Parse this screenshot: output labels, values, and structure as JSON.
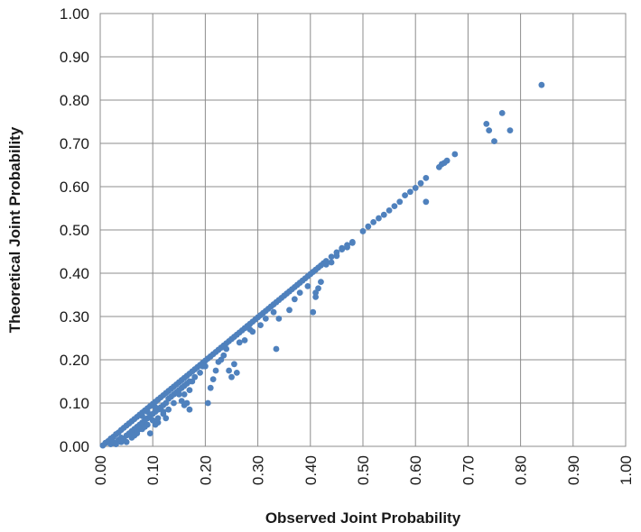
{
  "chart_data": {
    "type": "scatter",
    "title": "",
    "xlabel": "Observed Joint Probability",
    "ylabel": "Theoretical Joint Probability",
    "xlim": [
      0,
      1
    ],
    "ylim": [
      0,
      1
    ],
    "x_ticks": [
      "0.00",
      "0.10",
      "0.20",
      "0.30",
      "0.40",
      "0.50",
      "0.60",
      "0.70",
      "0.80",
      "0.90",
      "1.00"
    ],
    "y_ticks": [
      "0.00",
      "0.10",
      "0.20",
      "0.30",
      "0.40",
      "0.50",
      "0.60",
      "0.70",
      "0.80",
      "0.90",
      "1.00"
    ],
    "grid": true,
    "legend": "none",
    "marker_color": "#4F81BD",
    "series": [
      {
        "points": [
          [
            0.005,
            0.002
          ],
          [
            0.01,
            0.008
          ],
          [
            0.015,
            0.012
          ],
          [
            0.02,
            0.018
          ],
          [
            0.025,
            0.022
          ],
          [
            0.03,
            0.028
          ],
          [
            0.035,
            0.032
          ],
          [
            0.04,
            0.038
          ],
          [
            0.045,
            0.043
          ],
          [
            0.05,
            0.048
          ],
          [
            0.055,
            0.053
          ],
          [
            0.06,
            0.058
          ],
          [
            0.065,
            0.063
          ],
          [
            0.07,
            0.068
          ],
          [
            0.075,
            0.073
          ],
          [
            0.08,
            0.078
          ],
          [
            0.085,
            0.083
          ],
          [
            0.09,
            0.088
          ],
          [
            0.095,
            0.093
          ],
          [
            0.1,
            0.098
          ],
          [
            0.105,
            0.103
          ],
          [
            0.11,
            0.108
          ],
          [
            0.115,
            0.113
          ],
          [
            0.12,
            0.118
          ],
          [
            0.125,
            0.123
          ],
          [
            0.13,
            0.128
          ],
          [
            0.135,
            0.133
          ],
          [
            0.14,
            0.138
          ],
          [
            0.145,
            0.143
          ],
          [
            0.15,
            0.148
          ],
          [
            0.155,
            0.153
          ],
          [
            0.16,
            0.158
          ],
          [
            0.165,
            0.163
          ],
          [
            0.17,
            0.168
          ],
          [
            0.175,
            0.173
          ],
          [
            0.18,
            0.178
          ],
          [
            0.185,
            0.183
          ],
          [
            0.19,
            0.188
          ],
          [
            0.195,
            0.193
          ],
          [
            0.2,
            0.198
          ],
          [
            0.205,
            0.203
          ],
          [
            0.21,
            0.208
          ],
          [
            0.215,
            0.213
          ],
          [
            0.22,
            0.218
          ],
          [
            0.225,
            0.223
          ],
          [
            0.23,
            0.228
          ],
          [
            0.235,
            0.233
          ],
          [
            0.24,
            0.238
          ],
          [
            0.245,
            0.243
          ],
          [
            0.25,
            0.248
          ],
          [
            0.255,
            0.253
          ],
          [
            0.26,
            0.258
          ],
          [
            0.265,
            0.263
          ],
          [
            0.27,
            0.268
          ],
          [
            0.275,
            0.273
          ],
          [
            0.28,
            0.278
          ],
          [
            0.285,
            0.283
          ],
          [
            0.29,
            0.288
          ],
          [
            0.295,
            0.293
          ],
          [
            0.3,
            0.298
          ],
          [
            0.305,
            0.303
          ],
          [
            0.31,
            0.308
          ],
          [
            0.315,
            0.313
          ],
          [
            0.32,
            0.318
          ],
          [
            0.325,
            0.323
          ],
          [
            0.33,
            0.328
          ],
          [
            0.335,
            0.333
          ],
          [
            0.34,
            0.338
          ],
          [
            0.345,
            0.343
          ],
          [
            0.35,
            0.348
          ],
          [
            0.355,
            0.353
          ],
          [
            0.36,
            0.358
          ],
          [
            0.365,
            0.363
          ],
          [
            0.37,
            0.368
          ],
          [
            0.375,
            0.373
          ],
          [
            0.38,
            0.378
          ],
          [
            0.385,
            0.383
          ],
          [
            0.39,
            0.388
          ],
          [
            0.395,
            0.393
          ],
          [
            0.4,
            0.398
          ],
          [
            0.405,
            0.403
          ],
          [
            0.41,
            0.408
          ],
          [
            0.415,
            0.413
          ],
          [
            0.42,
            0.418
          ],
          [
            0.425,
            0.423
          ],
          [
            0.43,
            0.428
          ],
          [
            0.44,
            0.438
          ],
          [
            0.45,
            0.448
          ],
          [
            0.46,
            0.458
          ],
          [
            0.47,
            0.465
          ],
          [
            0.48,
            0.472
          ],
          [
            0.5,
            0.497
          ],
          [
            0.51,
            0.508
          ],
          [
            0.52,
            0.518
          ],
          [
            0.53,
            0.527
          ],
          [
            0.54,
            0.535
          ],
          [
            0.55,
            0.545
          ],
          [
            0.56,
            0.555
          ],
          [
            0.57,
            0.565
          ],
          [
            0.58,
            0.58
          ],
          [
            0.59,
            0.588
          ],
          [
            0.6,
            0.597
          ],
          [
            0.61,
            0.608
          ],
          [
            0.62,
            0.62
          ],
          [
            0.645,
            0.645
          ],
          [
            0.65,
            0.652
          ],
          [
            0.655,
            0.655
          ],
          [
            0.66,
            0.66
          ],
          [
            0.675,
            0.675
          ],
          [
            0.02,
            0.005
          ],
          [
            0.025,
            0.01
          ],
          [
            0.03,
            0.008
          ],
          [
            0.035,
            0.015
          ],
          [
            0.04,
            0.02
          ],
          [
            0.045,
            0.015
          ],
          [
            0.05,
            0.025
          ],
          [
            0.055,
            0.03
          ],
          [
            0.06,
            0.02
          ],
          [
            0.06,
            0.035
          ],
          [
            0.065,
            0.04
          ],
          [
            0.07,
            0.03
          ],
          [
            0.07,
            0.045
          ],
          [
            0.075,
            0.05
          ],
          [
            0.08,
            0.04
          ],
          [
            0.08,
            0.055
          ],
          [
            0.085,
            0.06
          ],
          [
            0.09,
            0.05
          ],
          [
            0.09,
            0.065
          ],
          [
            0.095,
            0.07
          ],
          [
            0.1,
            0.06
          ],
          [
            0.1,
            0.075
          ],
          [
            0.105,
            0.08
          ],
          [
            0.11,
            0.065
          ],
          [
            0.11,
            0.085
          ],
          [
            0.115,
            0.09
          ],
          [
            0.12,
            0.08
          ],
          [
            0.12,
            0.095
          ],
          [
            0.125,
            0.1
          ],
          [
            0.13,
            0.11
          ],
          [
            0.135,
            0.115
          ],
          [
            0.14,
            0.1
          ],
          [
            0.14,
            0.12
          ],
          [
            0.145,
            0.125
          ],
          [
            0.15,
            0.12
          ],
          [
            0.15,
            0.13
          ],
          [
            0.155,
            0.135
          ],
          [
            0.16,
            0.14
          ],
          [
            0.165,
            0.145
          ],
          [
            0.17,
            0.13
          ],
          [
            0.17,
            0.15
          ],
          [
            0.06,
            0.025
          ],
          [
            0.07,
            0.035
          ],
          [
            0.04,
            0.01
          ],
          [
            0.03,
            0.005
          ],
          [
            0.05,
            0.01
          ],
          [
            0.065,
            0.025
          ],
          [
            0.075,
            0.04
          ],
          [
            0.085,
            0.045
          ],
          [
            0.11,
            0.055
          ],
          [
            0.12,
            0.075
          ],
          [
            0.13,
            0.085
          ],
          [
            0.155,
            0.105
          ],
          [
            0.16,
            0.095
          ],
          [
            0.105,
            0.05
          ],
          [
            0.125,
            0.065
          ],
          [
            0.09,
            0.08
          ],
          [
            0.08,
            0.07
          ],
          [
            0.095,
            0.03
          ],
          [
            0.105,
            0.09
          ],
          [
            0.17,
            0.085
          ],
          [
            0.16,
            0.12
          ],
          [
            0.165,
            0.1
          ],
          [
            0.175,
            0.15
          ],
          [
            0.18,
            0.16
          ],
          [
            0.19,
            0.17
          ],
          [
            0.195,
            0.185
          ],
          [
            0.2,
            0.185
          ],
          [
            0.205,
            0.1
          ],
          [
            0.21,
            0.135
          ],
          [
            0.215,
            0.155
          ],
          [
            0.22,
            0.175
          ],
          [
            0.225,
            0.195
          ],
          [
            0.23,
            0.2
          ],
          [
            0.235,
            0.21
          ],
          [
            0.24,
            0.225
          ],
          [
            0.245,
            0.175
          ],
          [
            0.25,
            0.16
          ],
          [
            0.26,
            0.17
          ],
          [
            0.255,
            0.19
          ],
          [
            0.265,
            0.24
          ],
          [
            0.275,
            0.245
          ],
          [
            0.285,
            0.27
          ],
          [
            0.29,
            0.265
          ],
          [
            0.305,
            0.28
          ],
          [
            0.315,
            0.295
          ],
          [
            0.33,
            0.31
          ],
          [
            0.335,
            0.225
          ],
          [
            0.34,
            0.295
          ],
          [
            0.36,
            0.315
          ],
          [
            0.37,
            0.34
          ],
          [
            0.38,
            0.355
          ],
          [
            0.395,
            0.37
          ],
          [
            0.405,
            0.31
          ],
          [
            0.41,
            0.345
          ],
          [
            0.41,
            0.355
          ],
          [
            0.415,
            0.365
          ],
          [
            0.42,
            0.38
          ],
          [
            0.43,
            0.42
          ],
          [
            0.44,
            0.425
          ],
          [
            0.45,
            0.44
          ],
          [
            0.46,
            0.455
          ],
          [
            0.47,
            0.46
          ],
          [
            0.48,
            0.47
          ],
          [
            0.62,
            0.565
          ],
          [
            0.735,
            0.745
          ],
          [
            0.74,
            0.73
          ],
          [
            0.75,
            0.705
          ],
          [
            0.765,
            0.77
          ],
          [
            0.78,
            0.73
          ],
          [
            0.84,
            0.835
          ]
        ]
      }
    ]
  }
}
